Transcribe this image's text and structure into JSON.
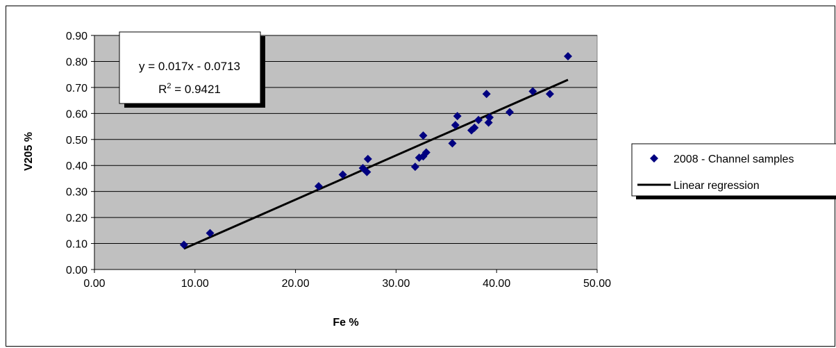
{
  "chart_data": {
    "type": "scatter",
    "xlabel": "Fe %",
    "ylabel": "V205 %",
    "xlim": [
      0,
      50
    ],
    "ylim": [
      0,
      0.9
    ],
    "x_ticks": [
      "0.00",
      "10.00",
      "20.00",
      "30.00",
      "40.00",
      "50.00"
    ],
    "y_ticks": [
      "0.00",
      "0.10",
      "0.20",
      "0.30",
      "0.40",
      "0.50",
      "0.60",
      "0.70",
      "0.80",
      "0.90"
    ],
    "grid": "horizontal",
    "legend_position": "right",
    "series": [
      {
        "name": "2008 - Channel samples",
        "kind": "scatter",
        "marker": "diamond",
        "color": "#000080",
        "points": [
          [
            8.9,
            0.095
          ],
          [
            11.5,
            0.14
          ],
          [
            22.3,
            0.32
          ],
          [
            24.7,
            0.365
          ],
          [
            26.7,
            0.39
          ],
          [
            27.1,
            0.375
          ],
          [
            27.2,
            0.425
          ],
          [
            31.9,
            0.395
          ],
          [
            32.3,
            0.43
          ],
          [
            32.7,
            0.435
          ],
          [
            32.7,
            0.515
          ],
          [
            33.0,
            0.45
          ],
          [
            35.6,
            0.485
          ],
          [
            35.9,
            0.555
          ],
          [
            36.1,
            0.59
          ],
          [
            37.5,
            0.535
          ],
          [
            37.8,
            0.545
          ],
          [
            38.2,
            0.575
          ],
          [
            39.0,
            0.675
          ],
          [
            39.2,
            0.565
          ],
          [
            39.3,
            0.585
          ],
          [
            41.3,
            0.605
          ],
          [
            43.6,
            0.685
          ],
          [
            45.3,
            0.675
          ],
          [
            47.1,
            0.82
          ]
        ]
      },
      {
        "name": "Linear regression",
        "kind": "line",
        "color": "#000000",
        "slope": 0.017,
        "intercept": -0.0713,
        "x_range": [
          8.9,
          47.1
        ]
      }
    ],
    "annotations": {
      "equation": "y = 0.017x - 0.0713",
      "r2_prefix": "R",
      "r2_sup": "2",
      "r2_suffix": " = 0.9421"
    },
    "plot_background": "#c0c0c0"
  }
}
